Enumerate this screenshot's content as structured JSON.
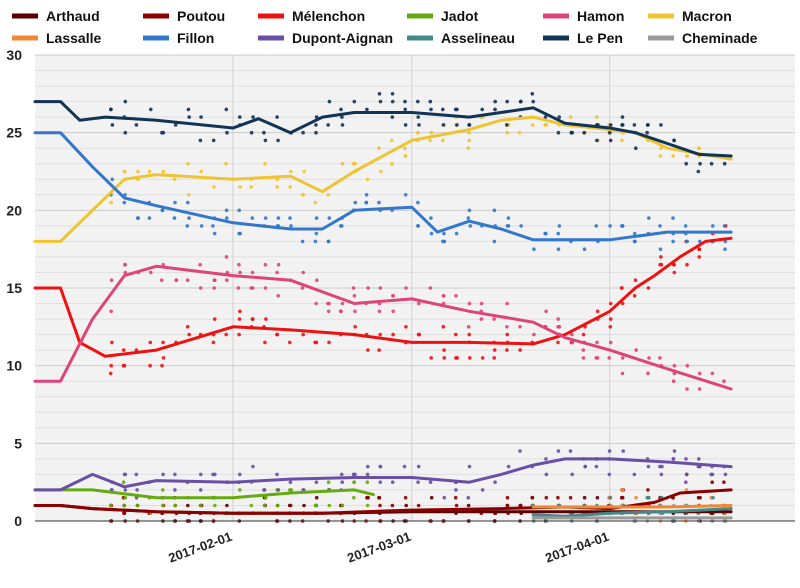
{
  "chart_data": {
    "type": "line",
    "title": "",
    "xlabel": "",
    "ylabel": "",
    "ylim": [
      0,
      30
    ],
    "xlim": [
      "2017-01-01",
      "2017-04-30"
    ],
    "y_ticks": [
      0,
      5,
      10,
      15,
      20,
      25,
      30
    ],
    "x_ticks": [
      "2017-02-01",
      "2017-03-01",
      "2017-04-01"
    ],
    "grid": true,
    "legend_position": "top",
    "series": [
      {
        "name": "Arthaud",
        "color": "#5a0000",
        "x": [
          "2017-01-01",
          "2017-01-05",
          "2017-01-10",
          "2017-01-20",
          "2017-02-01",
          "2017-02-15",
          "2017-03-01",
          "2017-03-15",
          "2017-04-01",
          "2017-04-10",
          "2017-04-20"
        ],
        "values": [
          1.0,
          1.0,
          0.8,
          0.6,
          0.5,
          0.5,
          0.6,
          0.6,
          0.6,
          0.6,
          0.6
        ]
      },
      {
        "name": "Poutou",
        "color": "#8b0000",
        "x": [
          "2017-01-01",
          "2017-01-05",
          "2017-01-10",
          "2017-01-20",
          "2017-02-01",
          "2017-02-15",
          "2017-03-01",
          "2017-03-15",
          "2017-03-25",
          "2017-04-01",
          "2017-04-08",
          "2017-04-12",
          "2017-04-20"
        ],
        "values": [
          1.0,
          1.0,
          0.8,
          0.6,
          0.5,
          0.5,
          0.7,
          0.8,
          0.9,
          0.8,
          1.2,
          1.8,
          2.0
        ]
      },
      {
        "name": "Mélenchon",
        "color": "#ee1111",
        "x": [
          "2017-01-01",
          "2017-01-05",
          "2017-01-08",
          "2017-01-12",
          "2017-01-20",
          "2017-02-01",
          "2017-02-10",
          "2017-02-20",
          "2017-03-01",
          "2017-03-10",
          "2017-03-20",
          "2017-03-25",
          "2017-04-01",
          "2017-04-05",
          "2017-04-08",
          "2017-04-12",
          "2017-04-16",
          "2017-04-20"
        ],
        "values": [
          15,
          15,
          11.5,
          10.6,
          11.0,
          12.5,
          12.3,
          12.0,
          11.5,
          11.5,
          11.4,
          12.0,
          13.5,
          15.0,
          15.8,
          17.0,
          18.0,
          18.2
        ]
      },
      {
        "name": "Jadot",
        "color": "#66aa11",
        "x": [
          "2017-01-01",
          "2017-01-05",
          "2017-01-10",
          "2017-01-20",
          "2017-02-01",
          "2017-02-10",
          "2017-02-20",
          "2017-02-23"
        ],
        "values": [
          2.0,
          2.0,
          2.0,
          1.5,
          1.5,
          1.8,
          2.0,
          1.7
        ]
      },
      {
        "name": "Hamon",
        "color": "#dd4477",
        "x": [
          "2017-01-01",
          "2017-01-05",
          "2017-01-10",
          "2017-01-15",
          "2017-01-20",
          "2017-02-01",
          "2017-02-10",
          "2017-02-20",
          "2017-03-01",
          "2017-03-10",
          "2017-03-20",
          "2017-03-25",
          "2017-04-01",
          "2017-04-10",
          "2017-04-20"
        ],
        "values": [
          9,
          9,
          13.0,
          15.8,
          16.4,
          15.8,
          15.5,
          14.0,
          14.3,
          13.5,
          12.8,
          11.8,
          11.0,
          9.8,
          8.5
        ]
      },
      {
        "name": "Macron",
        "color": "#eec433",
        "x": [
          "2017-01-01",
          "2017-01-05",
          "2017-01-10",
          "2017-01-15",
          "2017-01-20",
          "2017-02-01",
          "2017-02-10",
          "2017-02-15",
          "2017-02-20",
          "2017-03-01",
          "2017-03-10",
          "2017-03-15",
          "2017-03-20",
          "2017-03-25",
          "2017-04-01",
          "2017-04-05",
          "2017-04-10",
          "2017-04-20"
        ],
        "values": [
          18,
          18,
          20.0,
          22.0,
          22.3,
          22.0,
          22.2,
          21.2,
          22.5,
          24.5,
          25.2,
          25.8,
          26.0,
          25.5,
          25.2,
          25.0,
          24.0,
          23.3
        ]
      },
      {
        "name": "Lassalle",
        "color": "#ee8833",
        "x": [
          "2017-03-20",
          "2017-03-25",
          "2017-04-01",
          "2017-04-10",
          "2017-04-20"
        ],
        "values": [
          0.9,
          0.9,
          0.9,
          0.9,
          1.0
        ]
      },
      {
        "name": "Fillon",
        "color": "#3377cc",
        "x": [
          "2017-01-01",
          "2017-01-05",
          "2017-01-10",
          "2017-01-15",
          "2017-01-20",
          "2017-02-01",
          "2017-02-10",
          "2017-02-15",
          "2017-02-20",
          "2017-03-01",
          "2017-03-05",
          "2017-03-10",
          "2017-03-15",
          "2017-03-20",
          "2017-04-01",
          "2017-04-10",
          "2017-04-20"
        ],
        "values": [
          25,
          25,
          22.8,
          20.8,
          20.3,
          19.2,
          18.8,
          18.8,
          20.0,
          20.2,
          18.6,
          19.3,
          18.8,
          18.1,
          18.1,
          18.6,
          18.6
        ]
      },
      {
        "name": "Dupont-Aignan",
        "color": "#6a4fa8",
        "x": [
          "2017-01-01",
          "2017-01-05",
          "2017-01-10",
          "2017-01-15",
          "2017-01-20",
          "2017-02-01",
          "2017-02-10",
          "2017-02-20",
          "2017-03-01",
          "2017-03-10",
          "2017-03-15",
          "2017-03-20",
          "2017-03-25",
          "2017-04-01",
          "2017-04-10",
          "2017-04-20"
        ],
        "values": [
          2,
          2,
          3.0,
          2.2,
          2.6,
          2.5,
          2.7,
          2.8,
          2.8,
          2.5,
          3.0,
          3.6,
          4.0,
          4.0,
          3.8,
          3.5
        ]
      },
      {
        "name": "Asselineau",
        "color": "#448888",
        "x": [
          "2017-03-20",
          "2017-03-25",
          "2017-04-01",
          "2017-04-10",
          "2017-04-20"
        ],
        "values": [
          0.4,
          0.3,
          0.5,
          0.6,
          0.8
        ]
      },
      {
        "name": "Le Pen",
        "color": "#113355",
        "x": [
          "2017-01-01",
          "2017-01-05",
          "2017-01-08",
          "2017-01-12",
          "2017-01-20",
          "2017-02-01",
          "2017-02-05",
          "2017-02-10",
          "2017-02-15",
          "2017-02-20",
          "2017-03-01",
          "2017-03-10",
          "2017-03-20",
          "2017-03-25",
          "2017-04-01",
          "2017-04-05",
          "2017-04-10",
          "2017-04-15",
          "2017-04-20"
        ],
        "values": [
          27,
          27,
          25.8,
          26.0,
          25.8,
          25.3,
          25.9,
          25.0,
          26.0,
          26.3,
          26.3,
          26.0,
          26.6,
          25.6,
          25.3,
          25.0,
          24.3,
          23.6,
          23.5
        ]
      },
      {
        "name": "Cheminade",
        "color": "#999999",
        "x": [
          "2017-03-20",
          "2017-03-25",
          "2017-04-01",
          "2017-04-10",
          "2017-04-20"
        ],
        "values": [
          0.2,
          0.2,
          0.2,
          0.2,
          0.2
        ]
      }
    ]
  }
}
